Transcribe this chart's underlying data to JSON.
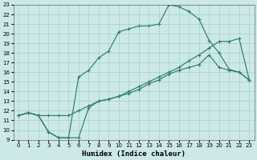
{
  "xlabel": "Humidex (Indice chaleur)",
  "xlim": [
    -0.5,
    23.5
  ],
  "ylim": [
    9,
    23
  ],
  "xticks": [
    0,
    1,
    2,
    3,
    4,
    5,
    6,
    7,
    8,
    9,
    10,
    11,
    12,
    13,
    14,
    15,
    16,
    17,
    18,
    19,
    20,
    21,
    22,
    23
  ],
  "yticks": [
    9,
    10,
    11,
    12,
    13,
    14,
    15,
    16,
    17,
    18,
    19,
    20,
    21,
    22,
    23
  ],
  "bg_color": "#cde9e7",
  "grid_color": "#aad4d0",
  "line_color": "#2d7d74",
  "line1_x": [
    0,
    1,
    2,
    3,
    4,
    5,
    6,
    7,
    8,
    9,
    10,
    11,
    12,
    13,
    14,
    15,
    16,
    17,
    18,
    19,
    20,
    21,
    22,
    23
  ],
  "line1_y": [
    11.5,
    11.8,
    11.5,
    9.8,
    9.2,
    9.2,
    9.2,
    12.3,
    13.0,
    13.2,
    13.5,
    13.8,
    14.2,
    14.8,
    15.2,
    15.8,
    16.2,
    16.5,
    16.8,
    17.8,
    16.5,
    16.2,
    16.0,
    15.2
  ],
  "line2_x": [
    0,
    1,
    2,
    3,
    4,
    5,
    6,
    7,
    8,
    9,
    10,
    11,
    12,
    13,
    14,
    15,
    16,
    17,
    18,
    19,
    20,
    21,
    22,
    23
  ],
  "line2_y": [
    11.5,
    11.8,
    11.5,
    11.5,
    11.5,
    11.5,
    12.0,
    12.5,
    13.0,
    13.2,
    13.5,
    14.0,
    14.5,
    15.0,
    15.5,
    16.0,
    16.5,
    17.2,
    17.8,
    18.5,
    19.2,
    19.2,
    19.5,
    15.2
  ],
  "line3_x": [
    0,
    1,
    2,
    3,
    4,
    5,
    6,
    7,
    8,
    9,
    10,
    11,
    12,
    13,
    14,
    15,
    16,
    17,
    18,
    19,
    20,
    21,
    22,
    23
  ],
  "line3_y": [
    11.5,
    11.8,
    11.5,
    9.8,
    9.2,
    9.2,
    15.5,
    16.2,
    17.5,
    18.2,
    20.2,
    20.5,
    20.8,
    20.8,
    21.0,
    23.0,
    22.8,
    22.3,
    21.5,
    19.3,
    18.0,
    16.3,
    16.0,
    15.2
  ]
}
